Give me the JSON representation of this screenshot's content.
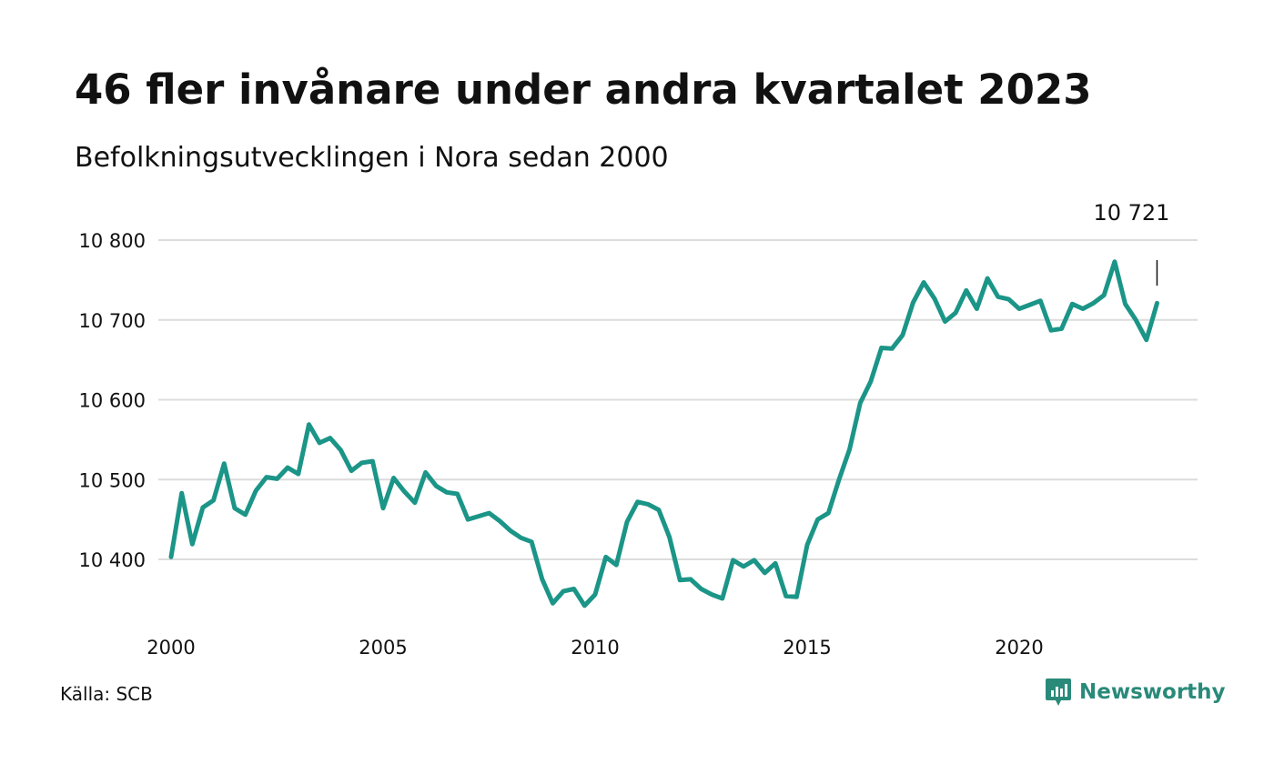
{
  "title": "46 fler invånare under andra kvartalet 2023",
  "subtitle": "Befolkningsutvecklingen i Nora sedan 2000",
  "source": "Källa: SCB",
  "brand": {
    "name": "Newsworthy",
    "icon": "chart-bubble-icon",
    "color": "#2a8a7a"
  },
  "chart_data": {
    "type": "line",
    "color": "#1b9587",
    "grid": true,
    "xlim": [
      2000,
      2024.17
    ],
    "ylim": [
      10330,
      10800
    ],
    "xticks": [
      2000,
      2005,
      2010,
      2015,
      2020
    ],
    "xtick_labels": [
      "2000",
      "2005",
      "2010",
      "2015",
      "2020"
    ],
    "yticks": [
      10400,
      10500,
      10600,
      10700,
      10800
    ],
    "ytick_labels": [
      "10 400",
      "10 500",
      "10 600",
      "10 700",
      "10 800"
    ],
    "annotation": {
      "text": "10 721",
      "x": 2023.25,
      "y": 10721
    },
    "series": [
      {
        "x_start": 2000.0,
        "x_step": 0.25,
        "values": [
          10403,
          10483,
          10419,
          10465,
          10474,
          10520,
          10464,
          10456,
          10486,
          10503,
          10501,
          10515,
          10507,
          10569,
          10546,
          10552,
          10537,
          10511,
          10521,
          10523,
          10464,
          10502,
          10485,
          10471,
          10509,
          10492,
          10484,
          10482,
          10450,
          10454,
          10458,
          10448,
          10436,
          10427,
          10422,
          10375,
          10345,
          10360,
          10363,
          10342,
          10356,
          10403,
          10393,
          10447,
          10472,
          10469,
          10462,
          10428,
          10374,
          10375,
          10363,
          10356,
          10351,
          10399,
          10391,
          10399,
          10383,
          10395,
          10354,
          10353,
          10418,
          10450,
          10458,
          10500,
          10538,
          10596,
          10623,
          10665,
          10664,
          10681,
          10722,
          10747,
          10727,
          10698,
          10709,
          10737,
          10714,
          10752,
          10729,
          10726,
          10714,
          10719,
          10724,
          10687,
          10689,
          10720,
          10714,
          10721,
          10731,
          10773,
          10720,
          10700,
          10675,
          10721
        ]
      }
    ]
  }
}
